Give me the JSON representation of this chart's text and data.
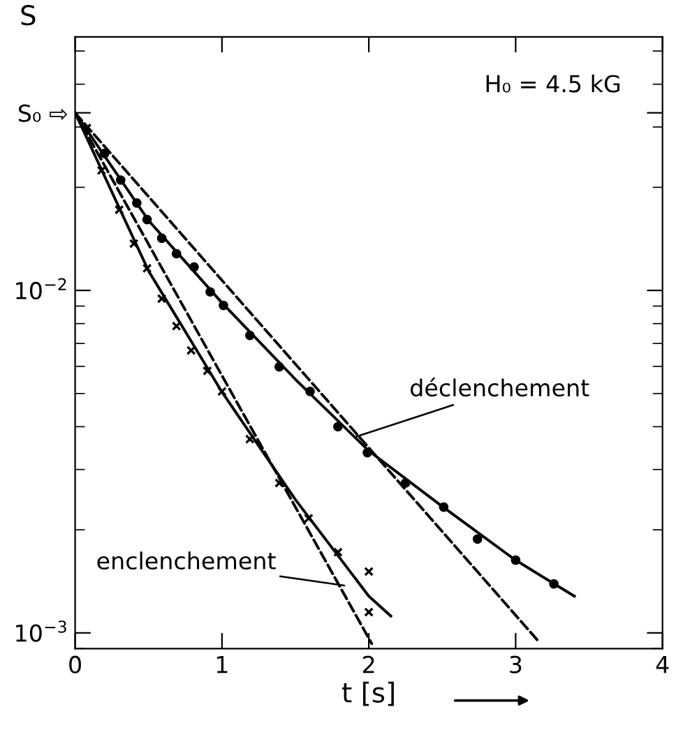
{
  "chart_data": {
    "type": "line",
    "ylabel": "S",
    "xlabel": "t [s]",
    "log": "y",
    "xlim": [
      0,
      4
    ],
    "xticks": [
      0,
      1,
      2,
      3,
      4
    ],
    "ylim": [
      0.0009,
      0.055
    ],
    "yticks": [
      {
        "value": 0.001,
        "label": "10$^{−3}$"
      },
      {
        "value": 0.01,
        "label": "10$^{−2}$"
      },
      {
        "value": 0.033,
        "label": "S₀ ⇨"
      }
    ],
    "grid": false,
    "series": [
      {
        "type": "scatter",
        "marker": "circle",
        "color": "#000000",
        "x": [
          0.2,
          0.31,
          0.42,
          0.49,
          0.59,
          0.69,
          0.81,
          0.92,
          1.01,
          1.19,
          1.39,
          1.6,
          1.79,
          1.99,
          2.25,
          2.51,
          2.74,
          3.0,
          3.26
        ],
        "values": [
          0.0251,
          0.021,
          0.018,
          0.0161,
          0.0142,
          0.0128,
          0.0117,
          0.0099,
          0.00904,
          0.00739,
          0.00598,
          0.00507,
          0.004,
          0.00336,
          0.00274,
          0.00233,
          0.00188,
          0.00163,
          0.00139
        ]
      },
      {
        "line_style": "solid",
        "color": "#000000",
        "x": [
          0,
          0.5,
          1,
          1.5,
          2,
          2.5,
          3,
          3.4
        ],
        "values": [
          0.033,
          0.016,
          0.0092,
          0.0055,
          0.0034,
          0.00234,
          0.00163,
          0.00128
        ]
      },
      {
        "line_style": "dashed",
        "color": "#000000",
        "x": [
          0,
          3.16
        ],
        "values": [
          0.033,
          0.00094
        ]
      },
      {
        "type": "scatter",
        "marker": "cross",
        "color": "#000000",
        "x": [
          0.08,
          0.18,
          0.3,
          0.4,
          0.49,
          0.59,
          0.69,
          0.79,
          0.9,
          1.0,
          1.19,
          1.39,
          1.59,
          1.79,
          2.0,
          2.0
        ],
        "values": [
          0.0298,
          0.0224,
          0.0172,
          0.0137,
          0.0116,
          0.00946,
          0.00787,
          0.00668,
          0.00582,
          0.00507,
          0.00368,
          0.00274,
          0.00216,
          0.00172,
          0.00151,
          0.00115
        ]
      },
      {
        "line_style": "solid",
        "color": "#000000",
        "x": [
          0,
          0.5,
          1,
          1.5,
          2,
          2.15
        ],
        "values": [
          0.033,
          0.0114,
          0.00505,
          0.00245,
          0.00128,
          0.00112
        ]
      },
      {
        "line_style": "dashed",
        "color": "#000000",
        "x": [
          0,
          2.02
        ],
        "values": [
          0.033,
          0.00093
        ]
      }
    ],
    "annotations": [
      {
        "text": "déclenchement",
        "x": 1.88,
        "y": 0.0037
      },
      {
        "text": "enclenchement",
        "x": 1.86,
        "y": 0.00137
      },
      "H₀ = 4.5 kG"
    ]
  }
}
